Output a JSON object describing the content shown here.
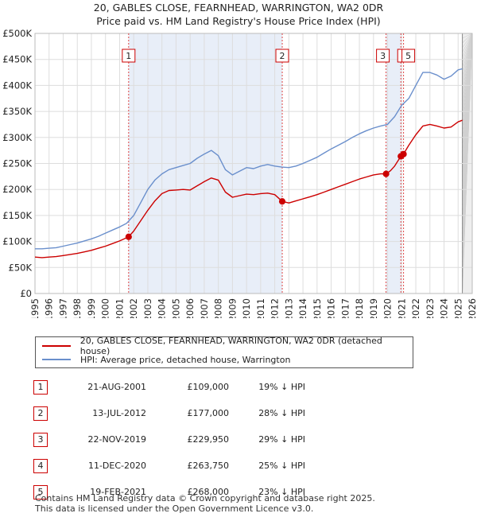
{
  "chart_data": {
    "type": "line",
    "title": "20, GABLES CLOSE, FEARNHEAD, WARRINGTON, WA2 0DR",
    "subtitle": "Price paid vs. HM Land Registry's House Price Index (HPI)",
    "xlabel": "",
    "ylabel": "",
    "xlim": [
      1995,
      2026
    ],
    "ylim": [
      0,
      500000
    ],
    "x_ticks": [
      "1995",
      "1996",
      "1997",
      "1998",
      "1999",
      "2000",
      "2001",
      "2002",
      "2003",
      "2004",
      "2005",
      "2006",
      "2007",
      "2008",
      "2009",
      "2010",
      "2011",
      "2012",
      "2013",
      "2014",
      "2015",
      "2016",
      "2017",
      "2018",
      "2019",
      "2020",
      "2021",
      "2022",
      "2023",
      "2024",
      "2025",
      "2026"
    ],
    "y_ticks": [
      {
        "value": 0,
        "label": "£0"
      },
      {
        "value": 50000,
        "label": "£50K"
      },
      {
        "value": 100000,
        "label": "£100K"
      },
      {
        "value": 150000,
        "label": "£150K"
      },
      {
        "value": 200000,
        "label": "£200K"
      },
      {
        "value": 250000,
        "label": "£250K"
      },
      {
        "value": 300000,
        "label": "£300K"
      },
      {
        "value": 350000,
        "label": "£350K"
      },
      {
        "value": 400000,
        "label": "£400K"
      },
      {
        "value": 450000,
        "label": "£450K"
      },
      {
        "value": 500000,
        "label": "£500K"
      }
    ],
    "grid": true,
    "series": [
      {
        "name": "20, GABLES CLOSE, FEARNHEAD, WARRINGTON, WA2 0DR (detached house)",
        "color": "#cc0000",
        "x": [
          1995.0,
          1995.5,
          1996.0,
          1996.5,
          1997.0,
          1997.5,
          1998.0,
          1998.5,
          1999.0,
          1999.5,
          2000.0,
          2000.5,
          2001.0,
          2001.64,
          2002.0,
          2002.5,
          2003.0,
          2003.5,
          2004.0,
          2004.5,
          2005.0,
          2005.5,
          2006.0,
          2006.5,
          2007.0,
          2007.5,
          2008.0,
          2008.5,
          2009.0,
          2009.5,
          2010.0,
          2010.5,
          2011.0,
          2011.5,
          2012.0,
          2012.53,
          2013.0,
          2013.5,
          2014.0,
          2014.5,
          2015.0,
          2015.5,
          2016.0,
          2016.5,
          2017.0,
          2017.5,
          2018.0,
          2018.5,
          2019.0,
          2019.5,
          2019.89,
          2020.2,
          2020.5,
          2020.94,
          2021.13,
          2021.5,
          2022.0,
          2022.5,
          2023.0,
          2023.5,
          2024.0,
          2024.5,
          2025.0,
          2025.3
        ],
        "values": [
          70000,
          69000,
          70000,
          71000,
          73000,
          75000,
          77000,
          80000,
          83000,
          87000,
          91000,
          96000,
          101000,
          109000,
          120000,
          140000,
          160000,
          178000,
          192000,
          198000,
          199000,
          200000,
          199000,
          207000,
          215000,
          222000,
          218000,
          195000,
          185000,
          188000,
          191000,
          190000,
          192000,
          193000,
          190000,
          177000,
          174000,
          178000,
          182000,
          186000,
          190000,
          195000,
          200000,
          205000,
          210000,
          215000,
          220000,
          224000,
          228000,
          230000,
          229950,
          236000,
          245000,
          263750,
          268000,
          285000,
          305000,
          322000,
          325000,
          322000,
          318000,
          320000,
          330000,
          333000
        ]
      },
      {
        "name": "HPI: Average price, detached house, Warrington",
        "color": "#6a8fcc",
        "x": [
          1995.0,
          1995.5,
          1996.0,
          1996.5,
          1997.0,
          1997.5,
          1998.0,
          1998.5,
          1999.0,
          1999.5,
          2000.0,
          2000.5,
          2001.0,
          2001.5,
          2002.0,
          2002.5,
          2003.0,
          2003.5,
          2004.0,
          2004.5,
          2005.0,
          2005.5,
          2006.0,
          2006.5,
          2007.0,
          2007.5,
          2008.0,
          2008.5,
          2009.0,
          2009.5,
          2010.0,
          2010.5,
          2011.0,
          2011.5,
          2012.0,
          2012.5,
          2013.0,
          2013.5,
          2014.0,
          2014.5,
          2015.0,
          2015.5,
          2016.0,
          2016.5,
          2017.0,
          2017.5,
          2018.0,
          2018.5,
          2019.0,
          2019.5,
          2020.0,
          2020.5,
          2021.0,
          2021.5,
          2022.0,
          2022.5,
          2023.0,
          2023.5,
          2024.0,
          2024.5,
          2025.0,
          2025.3
        ],
        "values": [
          86000,
          86000,
          87000,
          88000,
          91000,
          94000,
          97000,
          101000,
          105000,
          110000,
          116000,
          122000,
          128000,
          135000,
          150000,
          175000,
          200000,
          218000,
          230000,
          238000,
          242000,
          246000,
          250000,
          260000,
          268000,
          275000,
          265000,
          238000,
          228000,
          235000,
          242000,
          240000,
          245000,
          248000,
          245000,
          243000,
          242000,
          245000,
          250000,
          256000,
          262000,
          270000,
          278000,
          285000,
          292000,
          300000,
          307000,
          313000,
          318000,
          322000,
          325000,
          340000,
          362000,
          375000,
          400000,
          425000,
          425000,
          420000,
          412000,
          418000,
          430000,
          432000
        ]
      }
    ],
    "sales": [
      {
        "label": "1",
        "x": 2001.64,
        "price": 109000
      },
      {
        "label": "2",
        "x": 2012.53,
        "price": 177000
      },
      {
        "label": "3",
        "x": 2019.89,
        "price": 229950
      },
      {
        "label": "4",
        "x": 2020.94,
        "price": 263750
      },
      {
        "label": "5",
        "x": 2021.13,
        "price": 268000
      }
    ],
    "future_start": 2025.3
  },
  "legend": {
    "red": "20, GABLES CLOSE, FEARNHEAD, WARRINGTON, WA2 0DR (detached house)",
    "blue": "HPI: Average price, detached house, Warrington"
  },
  "table": [
    {
      "num": "1",
      "date": "21-AUG-2001",
      "price": "£109,000",
      "hpi": "19% ↓ HPI"
    },
    {
      "num": "2",
      "date": "13-JUL-2012",
      "price": "£177,000",
      "hpi": "28% ↓ HPI"
    },
    {
      "num": "3",
      "date": "22-NOV-2019",
      "price": "£229,950",
      "hpi": "29% ↓ HPI"
    },
    {
      "num": "4",
      "date": "11-DEC-2020",
      "price": "£263,750",
      "hpi": "25% ↓ HPI"
    },
    {
      "num": "5",
      "date": "19-FEB-2021",
      "price": "£268,000",
      "hpi": "23% ↓ HPI"
    }
  ],
  "footer": {
    "line1": "Contains HM Land Registry data © Crown copyright and database right 2025.",
    "line2": "This data is licensed under the Open Government Licence v3.0."
  }
}
